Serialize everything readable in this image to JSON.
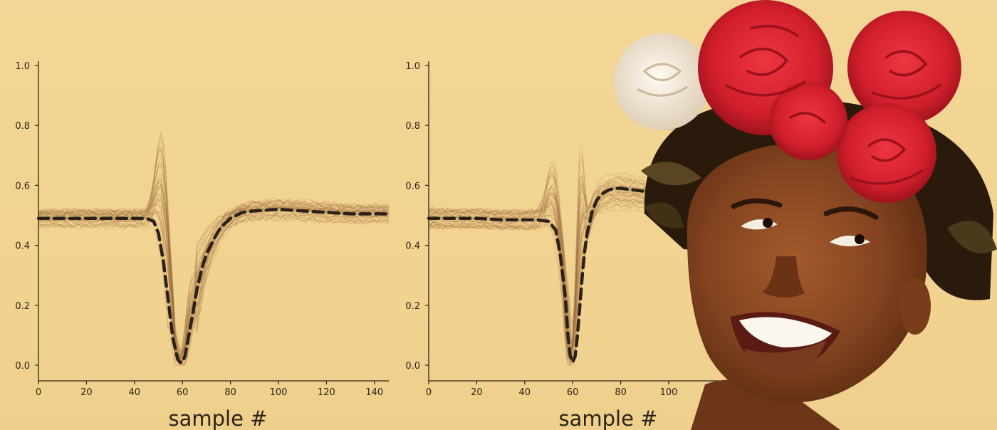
{
  "chart_data": [
    {
      "type": "line",
      "xlabel": "sample #",
      "ylabel": "",
      "xlim": [
        0,
        146
      ],
      "ylim": [
        0,
        1.0
      ],
      "xticks": [
        0,
        20,
        40,
        60,
        80,
        100,
        120,
        140
      ],
      "yticks": [
        0.0,
        0.2,
        0.4,
        0.6,
        0.8,
        1.0
      ],
      "grid": false,
      "series": [
        {
          "role": "mean",
          "style": "dashed",
          "x": [
            0,
            10,
            20,
            30,
            40,
            45,
            48,
            50,
            52,
            54,
            56,
            58,
            59,
            60,
            61,
            62,
            64,
            66,
            68,
            70,
            73,
            76,
            80,
            85,
            90,
            100,
            110,
            120,
            130,
            140,
            146
          ],
          "y": [
            0.49,
            0.49,
            0.49,
            0.49,
            0.49,
            0.49,
            0.48,
            0.44,
            0.35,
            0.22,
            0.09,
            0.02,
            0.01,
            0.01,
            0.03,
            0.07,
            0.16,
            0.25,
            0.32,
            0.37,
            0.42,
            0.46,
            0.49,
            0.51,
            0.515,
            0.52,
            0.515,
            0.51,
            0.505,
            0.505,
            0.505
          ]
        }
      ],
      "overlay": {
        "role": "individual waveforms",
        "count": 40,
        "color": "#9b6b3c"
      }
    },
    {
      "type": "line",
      "xlabel": "sample #",
      "ylabel": "",
      "xlim": [
        0,
        146
      ],
      "ylim": [
        0,
        1.0
      ],
      "xticks": [
        0,
        20,
        40,
        60,
        80,
        100
      ],
      "yticks": [
        0.0,
        0.2,
        0.4,
        0.6,
        0.8,
        1.0
      ],
      "grid": false,
      "series": [
        {
          "role": "mean",
          "style": "dashed",
          "x": [
            0,
            10,
            20,
            30,
            40,
            45,
            50,
            53,
            55,
            57,
            58,
            59,
            60,
            61,
            62,
            63,
            64,
            65,
            66,
            68,
            70,
            72,
            75,
            78,
            80,
            85,
            90,
            94
          ],
          "y": [
            0.49,
            0.49,
            0.49,
            0.485,
            0.485,
            0.485,
            0.48,
            0.45,
            0.36,
            0.22,
            0.1,
            0.03,
            0.01,
            0.03,
            0.1,
            0.2,
            0.3,
            0.38,
            0.44,
            0.51,
            0.55,
            0.57,
            0.585,
            0.59,
            0.59,
            0.585,
            0.58,
            0.575
          ]
        }
      ],
      "overlay": {
        "role": "individual waveforms",
        "count": 40,
        "color": "#9b6b3c"
      }
    }
  ],
  "photo": {
    "subject": "smiling woman wearing a red rose flower crown",
    "colors": {
      "rose": "#d8202d",
      "rose_dark": "#a8121c",
      "white_rose": "#f6efe4",
      "skin": "#8a4a24",
      "skin_dark": "#5a2a12",
      "leaf": "#4a3a1c",
      "hair": "#2a1a0c"
    }
  },
  "colors": {
    "background": "#f2d391",
    "axis": "#2b2418",
    "mean_line": "#2a2218",
    "trace": "#9b6b3c"
  }
}
